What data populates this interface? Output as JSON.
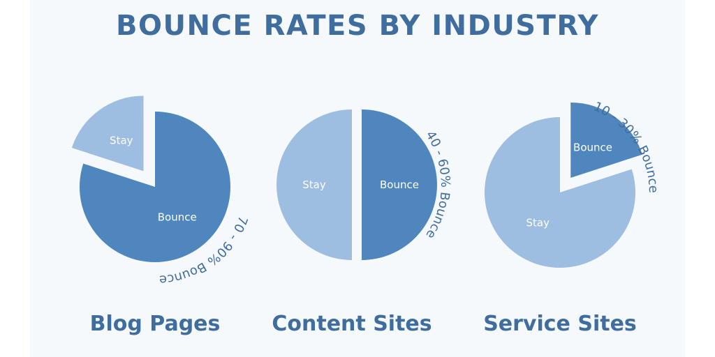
{
  "title": "BOUNCE RATES BY INDUSTRY",
  "colors": {
    "background": "#f5f9fc",
    "bounce": "#4e86bd",
    "stay": "#9dbde1",
    "text": "#3f6d9e"
  },
  "chart_data": [
    {
      "type": "pie",
      "caption": "Blog Pages",
      "bounce_range_label": "70 - 90% Bounce",
      "slices": [
        {
          "label": "Bounce",
          "value": 80
        },
        {
          "label": "Stay",
          "value": 20
        }
      ]
    },
    {
      "type": "pie",
      "caption": "Content Sites",
      "bounce_range_label": "40 - 60% Bounce",
      "slices": [
        {
          "label": "Bounce",
          "value": 50
        },
        {
          "label": "Stay",
          "value": 50
        }
      ]
    },
    {
      "type": "pie",
      "caption": "Service Sites",
      "bounce_range_label": "10 - 30% Bounce",
      "slices": [
        {
          "label": "Bounce",
          "value": 20
        },
        {
          "label": "Stay",
          "value": 80
        }
      ]
    }
  ]
}
